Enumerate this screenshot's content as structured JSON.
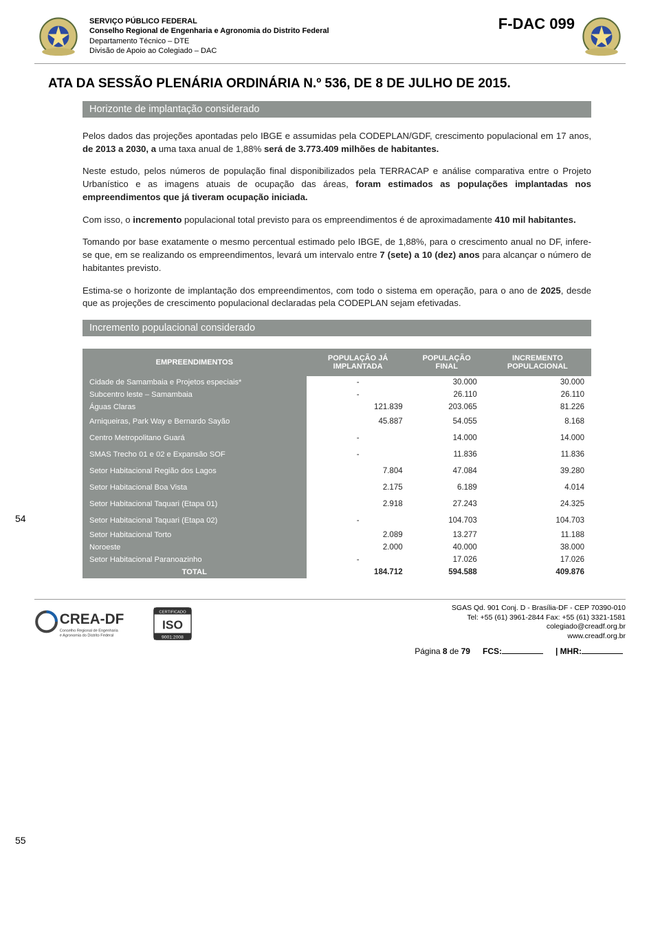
{
  "header": {
    "line1": "SERVIÇO PÚBLICO FEDERAL",
    "line2": "Conselho Regional de Engenharia e Agronomia do Distrito Federal",
    "line3": "Departamento Técnico – DTE",
    "line4": "Divisão de Apoio ao Colegiado – DAC",
    "form_code": "F-DAC 099"
  },
  "main_title": "ATA DA SESSÃO PLENÁRIA ORDINÁRIA N.º 536, DE 8 DE JULHO DE 2015.",
  "banner1": "Horizonte de implantação considerado",
  "paragraphs": {
    "p1a": "Pelos dados das projeções apontadas pelo IBGE e assumidas pela CODEPLAN/GDF, crescimento populacional em 17 anos, ",
    "p1b": "de 2013 a 2030, a",
    "p1c": " uma taxa anual de 1,88% ",
    "p1d": "será de 3.773.409 milhões de habitantes.",
    "p2a": "Neste estudo, pelos números de população final disponibilizados pela TERRACAP e análise comparativa entre o Projeto Urbanístico e as imagens atuais de ocupação das áreas, ",
    "p2b": "foram estimados as populações implantadas nos empreendimentos que já tiveram ocupação iniciada.",
    "p3a": "Com isso, o ",
    "p3b": "incremento",
    "p3c": " populacional total previsto para os empreendimentos é de aproximadamente ",
    "p3d": "410 mil habitantes.",
    "p4a": "Tomando por base exatamente o mesmo percentual estimado pelo IBGE, de 1,88%, para o crescimento anual no DF, infere-se que, em se realizando os empreendimentos, levará um intervalo entre ",
    "p4b": "7 (sete) a 10 (dez) anos",
    "p4c": " para alcançar o número de habitantes previsto.",
    "p5a": "Estima-se o horizonte de implantação dos empreendimentos, com todo o sistema em operação, para o ano de ",
    "p5b": "2025",
    "p5c": ", desde que as projeções de crescimento populacional declaradas pela CODEPLAN sejam efetivadas."
  },
  "banner2": "Incremento populacional considerado",
  "line_numbers": {
    "a": "54",
    "b": "55"
  },
  "table": {
    "header_bg": "#8e9390",
    "columns": [
      "EMPREENDIMENTOS",
      "POPULAÇÃO JÁ IMPLANTADA",
      "POPULAÇÃO FINAL",
      "INCREMENTO POPULACIONAL"
    ],
    "rows": [
      {
        "label": "Cidade de Samambaia e Projetos especiais*",
        "c1": "-",
        "c2": "30.000",
        "c3": "30.000",
        "tall": false
      },
      {
        "label": "Subcentro leste – Samambaia",
        "c1": "-",
        "c2": "26.110",
        "c3": "26.110",
        "tall": false
      },
      {
        "label": "Águas Claras",
        "c1": "121.839",
        "c2": "203.065",
        "c3": "81.226",
        "tall": false
      },
      {
        "label": "Arniqueiras, Park Way e Bernardo Sayão",
        "c1": "45.887",
        "c2": "54.055",
        "c3": "8.168",
        "tall": true
      },
      {
        "label": "Centro Metropolitano Guará",
        "c1": "-",
        "c2": "14.000",
        "c3": "14.000",
        "tall": true
      },
      {
        "label": "SMAS Trecho 01 e 02 e Expansão SOF",
        "c1": "-",
        "c2": "11.836",
        "c3": "11.836",
        "tall": true
      },
      {
        "label": "Setor Habitacional Região dos Lagos",
        "c1": "7.804",
        "c2": "47.084",
        "c3": "39.280",
        "tall": true
      },
      {
        "label": "Setor Habitacional Boa Vista",
        "c1": "2.175",
        "c2": "6.189",
        "c3": "4.014",
        "tall": true
      },
      {
        "label": "Setor Habitacional Taquari (Etapa 01)",
        "c1": "2.918",
        "c2": "27.243",
        "c3": "24.325",
        "tall": true
      },
      {
        "label": "Setor Habitacional Taquari (Etapa 02)",
        "c1": "-",
        "c2": "104.703",
        "c3": "104.703",
        "tall": true
      },
      {
        "label": "Setor Habitacional Torto",
        "c1": "2.089",
        "c2": "13.277",
        "c3": "11.188",
        "tall": false
      },
      {
        "label": "Noroeste",
        "c1": "2.000",
        "c2": "40.000",
        "c3": "38.000",
        "tall": false
      },
      {
        "label": "Setor Habitacional Paranoazinho",
        "c1": "-",
        "c2": "17.026",
        "c3": "17.026",
        "tall": false
      }
    ],
    "total": {
      "label": "TOTAL",
      "c1": "184.712",
      "c2": "594.588",
      "c3": "409.876"
    }
  },
  "footer": {
    "crea_main": "CREA-DF",
    "crea_sub1": "Conselho Regional de Engenharia",
    "crea_sub2": "e Agronomia do Distrito Federal",
    "iso_top": "CERTIFICADO",
    "iso_mid": "ISO",
    "iso_bot": "9001:2008",
    "addr1": "SGAS Qd. 901 Conj. D - Brasília-DF - CEP 70390-010",
    "addr2": "Tel: +55 (61) 3961-2844 Fax: +55 (61) 3321-1581",
    "addr3": "colegiado@creadf.org.br",
    "addr4": "www.creadf.org.br",
    "page_label": "Página ",
    "page_num": "8",
    "page_of": " de ",
    "page_total": "79",
    "fcs": "FCS:",
    "mhr": "| MHR:"
  }
}
